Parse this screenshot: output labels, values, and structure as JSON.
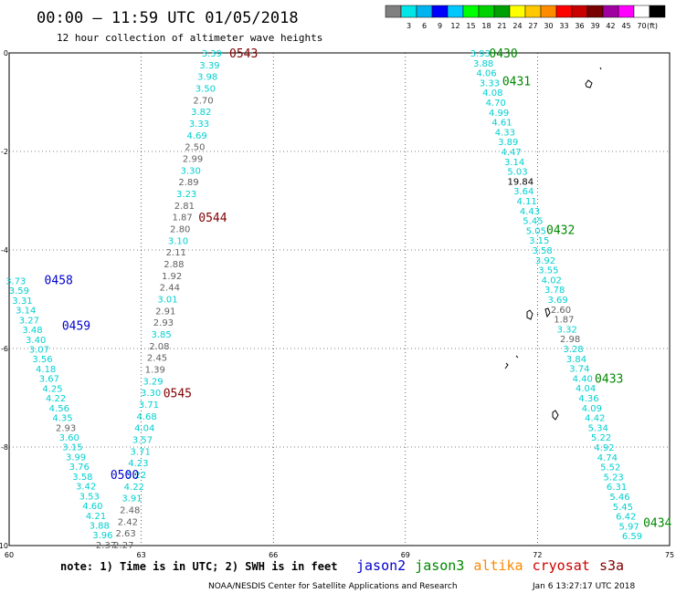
{
  "header": {
    "title": "00:00 – 11:59 UTC 01/05/2018",
    "subtitle": "12 hour collection of altimeter wave heights"
  },
  "legend": {
    "colors": [
      "#808080",
      "#00e5e5",
      "#00b4f0",
      "#0000ff",
      "#00c8ff",
      "#00ff00",
      "#00d200",
      "#00a000",
      "#ffff00",
      "#ffc800",
      "#ff8c00",
      "#ff0000",
      "#c80000",
      "#780000",
      "#a000a0",
      "#ff00ff",
      "#ffffff",
      "#000000"
    ],
    "labels": [
      "3",
      "6",
      "9",
      "12",
      "15",
      "18",
      "21",
      "24",
      "27",
      "30",
      "33",
      "36",
      "39",
      "42",
      "45",
      "70"
    ],
    "unit": "(ft)"
  },
  "footer": {
    "note": "note: 1) Time is in UTC; 2) SWH is in feet",
    "credit": "NOAA/NESDIS Center for Satellite Applications and Research",
    "timestamp": "Jan  6 13:27:17 UTC 2018"
  },
  "satellites": [
    {
      "name": "jason2",
      "color": "#0000cc"
    },
    {
      "name": "jason3",
      "color": "#008800"
    },
    {
      "name": "altika",
      "color": "#ff8800"
    },
    {
      "name": "cryosat",
      "color": "#cc0000"
    },
    {
      "name": "s3a",
      "color": "#800000"
    }
  ],
  "chart_data": {
    "type": "scatter",
    "xlim": [
      60,
      75
    ],
    "ylim": [
      -10,
      0
    ],
    "x_ticks": [
      "60",
      "63",
      "66",
      "69",
      "72",
      "75"
    ],
    "y_ticks": [
      "0",
      "-2",
      "-4",
      "-6",
      "-8",
      "-10"
    ],
    "grid": true,
    "pass_labels": [
      {
        "text": "0543",
        "lon": 65.0,
        "lat": -0.02,
        "color": "#800000"
      },
      {
        "text": "0544",
        "lon": 64.3,
        "lat": -3.35,
        "color": "#800000"
      },
      {
        "text": "0545",
        "lon": 63.5,
        "lat": -6.92,
        "color": "#800000"
      },
      {
        "text": "0458",
        "lon": 60.8,
        "lat": -4.62,
        "color": "#0000cc"
      },
      {
        "text": "0459",
        "lon": 61.2,
        "lat": -5.55,
        "color": "#0000cc"
      },
      {
        "text": "0500",
        "lon": 62.3,
        "lat": -8.57,
        "color": "#0000cc"
      },
      {
        "text": "0430",
        "lon": 70.9,
        "lat": -0.02,
        "color": "#008800"
      },
      {
        "text": "0431",
        "lon": 71.2,
        "lat": -0.58,
        "color": "#008800"
      },
      {
        "text": "0432",
        "lon": 72.2,
        "lat": -3.6,
        "color": "#008800"
      },
      {
        "text": "0433",
        "lon": 73.3,
        "lat": -6.62,
        "color": "#008800"
      },
      {
        "text": "0434",
        "lon": 74.4,
        "lat": -9.55,
        "color": "#008800"
      }
    ],
    "series": [
      {
        "name": "cryosat",
        "track": "mid",
        "color_high": "#00d0d0",
        "color_low": "#606060",
        "lon0": 64.6,
        "lat0": 0.0,
        "lon1": 62.6,
        "lat1": -9.98,
        "values": [
          "3.39",
          "3.39",
          "3.98",
          "3.50",
          "2.70",
          "3.82",
          "3.33",
          "4.69",
          "2.50",
          "2.99",
          "3.30",
          "2.89",
          "3.23",
          "2.81",
          "1.87",
          "2.80",
          "3.10",
          "2.11",
          "2.88",
          "1.92",
          "2.44",
          "3.01",
          "2.91",
          "2.93",
          "3.85",
          "2.08",
          "2.45",
          "1.39",
          "3.29",
          "3.30",
          "3.71",
          "4.68",
          "4.04",
          "3.57",
          "3.71",
          "4.23",
          "5.22",
          "4.22",
          "3.91",
          "2.48",
          "2.42",
          "2.63",
          "2.27"
        ]
      },
      {
        "name": "jason2",
        "track": "left",
        "color_high": "#00d0d0",
        "color_low": "#606060",
        "lon0": 60.15,
        "lat0": -4.62,
        "lon1": 62.2,
        "lat1": -9.98,
        "values": [
          "3.73",
          "3.59",
          "3.31",
          "3.14",
          "3.27",
          "3.48",
          "3.40",
          "3.07",
          "3.56",
          "4.18",
          "3.67",
          "4.25",
          "4.22",
          "4.56",
          "4.35",
          "2.93",
          "3.60",
          "3.15",
          "3.99",
          "3.76",
          "3.58",
          "3.42",
          "3.53",
          "4.60",
          "4.21",
          "3.88",
          "3.96",
          "2.37"
        ]
      },
      {
        "name": "jason3",
        "track": "right",
        "color_high": "#00d0d0",
        "color_low": "#606060",
        "color_peak": "#000000",
        "lon0": 70.7,
        "lat0": 0.0,
        "lon1": 74.15,
        "lat1": -9.8,
        "values": [
          "3.93",
          "3.88",
          "4.06",
          "3.33",
          "4.08",
          "4.70",
          "4.99",
          "4.61",
          "4.33",
          "3.89",
          "4.47",
          "3.14",
          "5.03",
          "19.84",
          "3.64",
          "4.11",
          "4.43",
          "5.45",
          "5.05",
          "3.15",
          "3.58",
          "3.92",
          "3.55",
          "4.02",
          "3.78",
          "3.69",
          "2.60",
          "1.87",
          "3.32",
          "2.98",
          "3.28",
          "3.84",
          "3.74",
          "4.40",
          "4.04",
          "4.36",
          "4.09",
          "4.42",
          "5.34",
          "5.22",
          "4.92",
          "4.74",
          "5.52",
          "5.23",
          "6.31",
          "5.46",
          "5.45",
          "6.42",
          "5.97",
          "6.59"
        ]
      }
    ]
  }
}
